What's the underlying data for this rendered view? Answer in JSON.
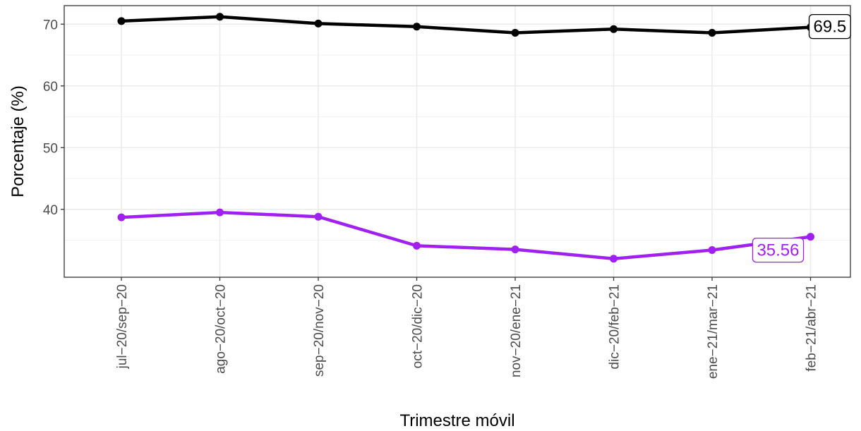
{
  "chart_data": {
    "type": "line",
    "xlabel": "Trimestre móvil",
    "ylabel": "Porcentaje (%)",
    "ylim": [
      29,
      73
    ],
    "yticks": [
      40,
      50,
      60,
      70
    ],
    "grid": true,
    "legend": "none",
    "categories": [
      "jul−20/sep−20",
      "ago−20/oct−20",
      "sep−20/nov−20",
      "oct−20/dic−20",
      "nov−20/ene−21",
      "dic−20/feb−21",
      "ene−21/mar−21",
      "feb−21/abr−21"
    ],
    "series": [
      {
        "color": "#000000",
        "values": [
          70.5,
          71.2,
          70.1,
          69.6,
          68.6,
          69.2,
          68.6,
          69.5
        ],
        "end_label": "69.5"
      },
      {
        "color": "#a020f0",
        "values": [
          38.7,
          39.5,
          38.8,
          34.1,
          33.5,
          32.0,
          33.4,
          35.56
        ],
        "end_label": "35.56"
      }
    ]
  }
}
